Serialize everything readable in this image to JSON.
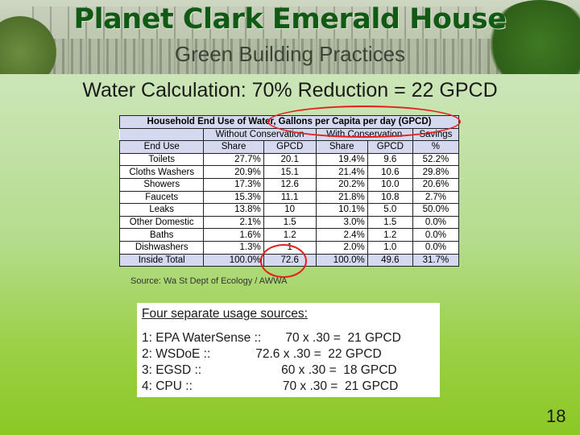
{
  "slide": {
    "title": "Planet Clark Emerald House",
    "subtitle": "Green Building Practices",
    "heading": "Water Calculation: 70% Reduction = 22 GPCD",
    "page_number": "18"
  },
  "table": {
    "title": "Household End Use of Water, Gallons per Capita per day (GPCD)",
    "group_headers": [
      "Without Conservation",
      "With Conservation",
      "Savings"
    ],
    "columns": [
      "End Use",
      "Share",
      "GPCD",
      "Share",
      "GPCD",
      "%"
    ],
    "rows": [
      [
        "Toilets",
        "27.7%",
        "20.1",
        "19.4%",
        "9.6",
        "52.2%"
      ],
      [
        "Cloths Washers",
        "20.9%",
        "15.1",
        "21.4%",
        "10.6",
        "29.8%"
      ],
      [
        "Showers",
        "17.3%",
        "12.6",
        "20.2%",
        "10.0",
        "20.6%"
      ],
      [
        "Faucets",
        "15.3%",
        "11.1",
        "21.8%",
        "10.8",
        "2.7%"
      ],
      [
        "Leaks",
        "13.8%",
        "10",
        "10.1%",
        "5.0",
        "50.0%"
      ],
      [
        "Other Domestic",
        "2.1%",
        "1.5",
        "3.0%",
        "1.5",
        "0.0%"
      ],
      [
        "Baths",
        "1.6%",
        "1.2",
        "2.4%",
        "1.2",
        "0.0%"
      ],
      [
        "Dishwashers",
        "1.3%",
        "1",
        "2.0%",
        "1.0",
        "0.0%"
      ],
      [
        "Inside Total",
        "100.0%",
        "72.6",
        "100.0%",
        "49.6",
        "31.7%"
      ]
    ]
  },
  "source": "Source: Wa St Dept of Ecology / AWWA",
  "usage": {
    "title": "Four separate usage sources:",
    "lines": [
      "1: EPA WaterSense ::       70 x .30 =  21 GPCD",
      "2: WSDoE ::             72.6 x .30 =  22 GPCD",
      "3: EGSD ::                       60 x .30 =  18 GPCD",
      "4: CPU ::                          70 x .30 =  21 GPCD"
    ]
  },
  "colors": {
    "title_green": "#115a16",
    "annotation_red": "#e3201b",
    "table_header": "#d5d9ef"
  }
}
